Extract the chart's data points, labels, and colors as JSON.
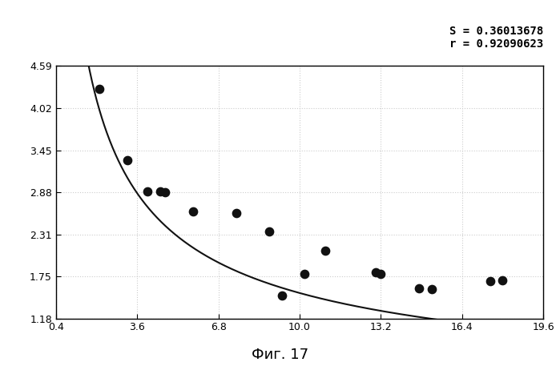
{
  "scatter_x": [
    2.1,
    3.2,
    4.0,
    4.5,
    4.7,
    5.8,
    7.5,
    8.8,
    9.3,
    10.2,
    11.0,
    13.0,
    13.2,
    14.7,
    15.2,
    17.5,
    18.0
  ],
  "scatter_y": [
    4.28,
    3.32,
    2.9,
    2.9,
    2.88,
    2.62,
    2.6,
    2.35,
    1.49,
    1.78,
    2.1,
    1.8,
    1.78,
    1.59,
    1.58,
    1.68,
    1.7
  ],
  "curve_a": 6.35,
  "curve_b": -0.62,
  "xlim": [
    0.4,
    19.6
  ],
  "ylim": [
    1.18,
    4.59
  ],
  "xticks": [
    0.4,
    3.6,
    6.8,
    10.0,
    13.2,
    16.4,
    19.6
  ],
  "yticks": [
    1.18,
    1.75,
    2.31,
    2.88,
    3.45,
    4.02,
    4.59
  ],
  "annotation_text": "S = 0.36013678\nr = 0.92090623",
  "caption": "Фиг. 17",
  "background_color": "#ffffff",
  "dot_color": "#111111",
  "line_color": "#111111",
  "dot_size": 55,
  "grid_color": "#cccccc",
  "grid_style": ":"
}
